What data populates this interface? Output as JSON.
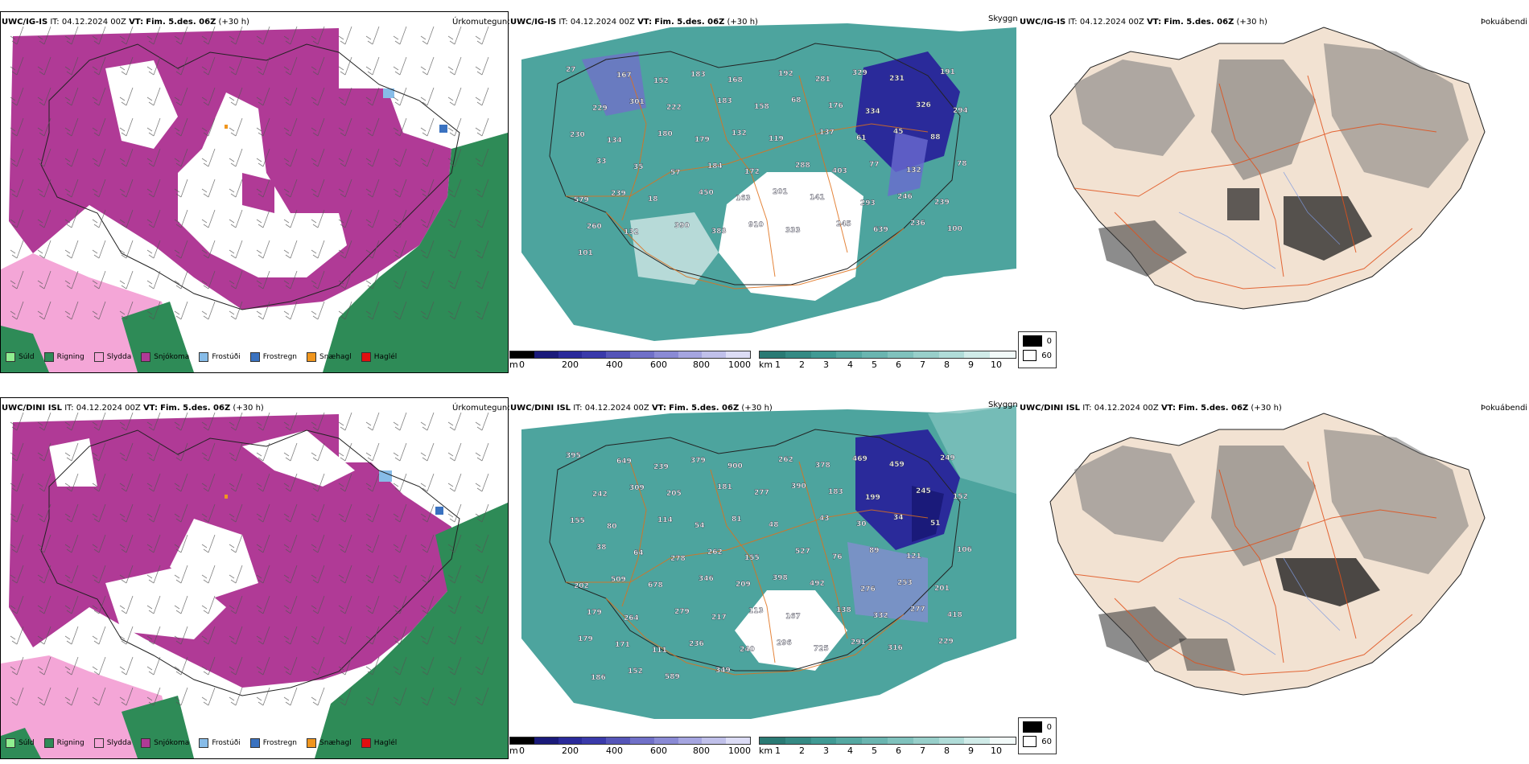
{
  "rows": [
    {
      "model": "UWC/IG-IS",
      "issue": "IT: 04.12.2024 00Z",
      "valid_label": "VT:",
      "valid": "Fim. 5.des. 06Z",
      "lead": "(+30 h)",
      "ceiling_labels": [
        "27",
        "167",
        "152",
        "183",
        "168",
        "192",
        "281",
        "329",
        "231",
        "191",
        "229",
        "301",
        "222",
        "183",
        "158",
        "68",
        "176",
        "334",
        "326",
        "294",
        "230",
        "134",
        "180",
        "179",
        "132",
        "119",
        "137",
        "61",
        "45",
        "88",
        "33",
        "35",
        "57",
        "184",
        "172",
        "288",
        "403",
        "77",
        "132",
        "78",
        "579",
        "239",
        "18",
        "450",
        "163",
        "201",
        "141",
        "293",
        "246",
        "239",
        "260",
        "132",
        "390",
        "383",
        "910",
        "333",
        "245",
        "639",
        "236",
        "100",
        "101"
      ]
    },
    {
      "model": "UWC/DINI ISL",
      "issue": "IT: 04.12.2024 00Z",
      "valid_label": "VT:",
      "valid": "Fim. 5.des. 06Z",
      "lead": "(+30 h)",
      "ceiling_labels": [
        "395",
        "649",
        "239",
        "379",
        "900",
        "262",
        "378",
        "469",
        "459",
        "249",
        "242",
        "309",
        "205",
        "181",
        "277",
        "390",
        "183",
        "199",
        "245",
        "152",
        "155",
        "80",
        "114",
        "54",
        "81",
        "48",
        "43",
        "30",
        "34",
        "51",
        "38",
        "64",
        "278",
        "262",
        "155",
        "527",
        "76",
        "89",
        "121",
        "106",
        "202",
        "509",
        "678",
        "346",
        "209",
        "398",
        "492",
        "276",
        "253",
        "201",
        "179",
        "264",
        "279",
        "217",
        "113",
        "167",
        "138",
        "332",
        "277",
        "418",
        "179",
        "171",
        "111",
        "236",
        "240",
        "296",
        "725",
        "291",
        "316",
        "229",
        "186",
        "152",
        "589",
        "349"
      ]
    }
  ],
  "panels": {
    "precip_type_title": "Úrkomutegund",
    "ceiling_title": "Skyggni",
    "fog_title": "Þokuábendi"
  },
  "legend": [
    {
      "label": "Súld",
      "color": "#90ee90"
    },
    {
      "label": "Rigning",
      "color": "#2e8b57"
    },
    {
      "label": "Slydda",
      "color": "#f4a6d7"
    },
    {
      "label": "Snjókoma",
      "color": "#b03a96"
    },
    {
      "label": "Frostúði",
      "color": "#87bce8"
    },
    {
      "label": "Frostregn",
      "color": "#3a72c0"
    },
    {
      "label": "Snæhagl",
      "color": "#f0961e"
    },
    {
      "label": "Haglél",
      "color": "#e01010"
    }
  ],
  "ceiling_bar": {
    "unit": "m",
    "ticks": [
      "0",
      "200",
      "400",
      "600",
      "800",
      "1000"
    ]
  },
  "visibility_bar": {
    "unit": "km",
    "ticks": [
      "1",
      "2",
      "3",
      "4",
      "5",
      "6",
      "7",
      "8",
      "9",
      "10"
    ]
  },
  "fog_legend": {
    "low": "0",
    "high": "60"
  },
  "colors": {
    "snow": "#b03a96",
    "rain": "#2e8b57",
    "sleet": "#f4a6d7",
    "teal": "#3a9a94",
    "ceiling_dark": "#2a2a9a",
    "roads": "#e0701a",
    "fog_land": "#f2e2d2"
  }
}
